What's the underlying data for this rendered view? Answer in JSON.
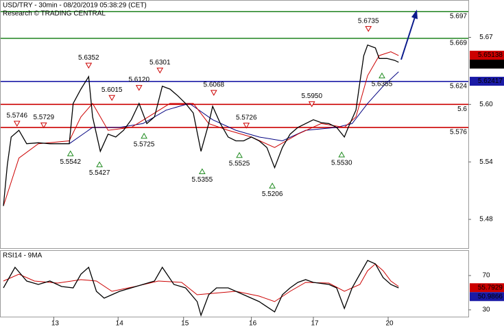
{
  "chart_data": [
    {
      "type": "line",
      "title": "USD/TRY - 30min - 08/20/2019 05:38:29 (CET)",
      "subtitle": "Research © TRADING CENTRAL",
      "xlim": [
        0,
        120
      ],
      "ylim": [
        5.45,
        5.709
      ],
      "yticks": [
        5.48,
        5.54,
        {
          "value": 5.6,
          "label": "5.60"
        },
        5.67
      ],
      "series": [
        {
          "color": "#000000",
          "x": [
            0,
            1,
            2,
            4,
            6,
            9,
            12,
            17,
            18,
            20,
            22,
            23,
            25,
            27,
            29,
            31,
            33,
            35,
            37,
            39,
            41,
            43,
            45,
            47,
            49,
            51,
            53,
            54,
            56,
            58,
            60,
            62,
            64,
            66,
            68,
            70,
            72,
            74,
            76,
            78,
            80,
            82,
            84,
            86,
            88,
            89,
            91,
            92,
            93,
            94,
            96,
            97,
            99,
            101,
            102
          ],
          "values": [
            5.494,
            5.537,
            5.566,
            5.573,
            5.559,
            5.56,
            5.559,
            5.559,
            5.601,
            5.616,
            5.629,
            5.587,
            5.551,
            5.569,
            5.566,
            5.573,
            5.584,
            5.601,
            5.58,
            5.587,
            5.619,
            5.616,
            5.609,
            5.601,
            5.591,
            5.551,
            5.58,
            5.598,
            5.58,
            5.566,
            5.562,
            5.562,
            5.566,
            5.562,
            5.555,
            5.534,
            5.555,
            5.569,
            5.576,
            5.58,
            5.584,
            5.581,
            5.58,
            5.576,
            5.566,
            5.576,
            5.594,
            5.623,
            5.651,
            5.662,
            5.659,
            5.648,
            5.648,
            5.646,
            5.644
          ]
        },
        {
          "color": "#cc0000",
          "x": [
            0,
            4,
            9,
            17,
            20,
            23,
            27,
            33,
            39,
            43,
            49,
            53,
            58,
            64,
            70,
            76,
            82,
            88,
            91,
            94,
            97,
            100,
            102
          ],
          "values": [
            5.494,
            5.544,
            5.559,
            5.562,
            5.587,
            5.601,
            5.573,
            5.576,
            5.591,
            5.601,
            5.601,
            5.58,
            5.573,
            5.566,
            5.555,
            5.569,
            5.58,
            5.576,
            5.587,
            5.63,
            5.651,
            5.655,
            5.651
          ]
        },
        {
          "color": "#000080",
          "x": [
            17,
            23,
            30,
            36,
            42,
            48,
            54,
            60,
            66,
            72,
            78,
            86,
            90,
            94,
            98,
            102
          ],
          "values": [
            5.559,
            5.576,
            5.576,
            5.58,
            5.594,
            5.601,
            5.584,
            5.573,
            5.566,
            5.562,
            5.573,
            5.576,
            5.58,
            5.601,
            5.619,
            5.634
          ]
        }
      ],
      "levels": [
        {
          "value": 5.697,
          "color": "#2e8b2e"
        },
        {
          "value": 5.669,
          "color": "#2e8b2e"
        },
        {
          "value": 5.624,
          "color": "#1a1aa6"
        },
        {
          "value": 5.6,
          "color": "#cc0000"
        },
        {
          "value": 5.576,
          "color": "#cc0000"
        }
      ],
      "pivots": [
        {
          "x": 3.5,
          "value": 5.5746,
          "label": "5.5746",
          "kind": "high"
        },
        {
          "x": 10.4,
          "value": 5.5729,
          "label": "5.5729",
          "kind": "high"
        },
        {
          "x": 17.3,
          "value": 5.5542,
          "label": "5.5542",
          "kind": "low"
        },
        {
          "x": 22,
          "value": 5.6352,
          "label": "5.6352",
          "kind": "high"
        },
        {
          "x": 24.8,
          "value": 5.5427,
          "label": "5.5427",
          "kind": "low"
        },
        {
          "x": 28,
          "value": 5.6015,
          "label": "5.6015",
          "kind": "high"
        },
        {
          "x": 35,
          "value": 5.612,
          "label": "5.6120",
          "kind": "high"
        },
        {
          "x": 36.3,
          "value": 5.5725,
          "label": "5.5725",
          "kind": "low"
        },
        {
          "x": 40.4,
          "value": 5.6301,
          "label": "5.6301",
          "kind": "high"
        },
        {
          "x": 51.3,
          "value": 5.5355,
          "label": "5.5355",
          "kind": "low"
        },
        {
          "x": 54.3,
          "value": 5.6068,
          "label": "5.6068",
          "kind": "high"
        },
        {
          "x": 60.9,
          "value": 5.5525,
          "label": "5.5525",
          "kind": "low"
        },
        {
          "x": 62.7,
          "value": 5.5726,
          "label": "5.5726",
          "kind": "high"
        },
        {
          "x": 69.4,
          "value": 5.5206,
          "label": "5.5206",
          "kind": "low"
        },
        {
          "x": 79.6,
          "value": 5.595,
          "label": "5.5950",
          "kind": "high"
        },
        {
          "x": 87.3,
          "value": 5.553,
          "label": "5.5530",
          "kind": "low"
        },
        {
          "x": 94.2,
          "value": 5.6735,
          "label": "5.6735",
          "kind": "high"
        },
        {
          "x": 97.7,
          "value": 5.6355,
          "label": "5.6355",
          "kind": "low"
        }
      ],
      "axis_markers": [
        {
          "value": 5.65138,
          "label": "5.65138",
          "color": "#cc0000"
        },
        {
          "value": 5.6438,
          "label": "5.6438",
          "color": "#000000"
        },
        {
          "value": 5.62417,
          "label": "5.62417",
          "color": "#1a1aa6"
        }
      ]
    },
    {
      "type": "line",
      "title": "RSI14 - 9MA",
      "xlim": [
        0,
        120
      ],
      "ylim": [
        22,
        99.6
      ],
      "yticks": [
        30,
        70
      ],
      "xticks": [
        {
          "value": 13,
          "label": "13"
        },
        {
          "value": 29.6,
          "label": "14"
        },
        {
          "value": 46.5,
          "label": "15"
        },
        {
          "value": 64,
          "label": "16"
        },
        {
          "value": 80,
          "label": "17"
        },
        {
          "value": 99.3,
          "label": "20"
        }
      ],
      "series": [
        {
          "color": "#000000",
          "x": [
            0,
            3,
            6,
            9,
            12,
            15,
            18,
            20,
            22,
            24,
            26,
            28,
            30,
            33,
            36,
            39,
            41,
            44,
            47,
            50,
            51,
            53,
            55,
            58,
            62,
            66,
            70,
            72,
            74,
            76,
            78,
            80,
            84,
            86,
            88,
            90,
            92,
            94,
            96,
            98,
            100,
            102
          ],
          "values": [
            55.6,
            79.6,
            63.6,
            59.6,
            63.6,
            57.2,
            55.6,
            71.6,
            79.6,
            51.6,
            43.6,
            47.6,
            51.6,
            55.6,
            59.6,
            63.6,
            79.6,
            59.6,
            55.6,
            39.6,
            23.6,
            47.6,
            55.6,
            55.6,
            47.6,
            39.6,
            27.6,
            47.6,
            55.6,
            62,
            65.2,
            62,
            59.6,
            55.6,
            31.6,
            55.6,
            71.6,
            87.6,
            83.6,
            67.6,
            59.6,
            55.6
          ]
        },
        {
          "color": "#cc0000",
          "x": [
            0,
            4,
            8,
            14,
            20,
            24,
            28,
            34,
            40,
            46,
            50,
            54,
            60,
            66,
            70,
            74,
            78,
            84,
            88,
            92,
            94,
            96,
            98,
            100,
            102
          ],
          "values": [
            63.6,
            71.6,
            63.6,
            61.2,
            65.2,
            63.6,
            51.6,
            57.2,
            63.6,
            62,
            47.6,
            49.2,
            51.6,
            46,
            39.6,
            51.6,
            62,
            61.2,
            51.6,
            59.6,
            75.6,
            83.6,
            75.6,
            63.6,
            57.2
          ]
        }
      ],
      "axis_markers": [
        {
          "value": 55.7929,
          "label": "55.7929",
          "color": "#cc0000"
        },
        {
          "value": 50.9866,
          "label": "50.9866",
          "color": "#1a1aa6"
        }
      ]
    }
  ]
}
